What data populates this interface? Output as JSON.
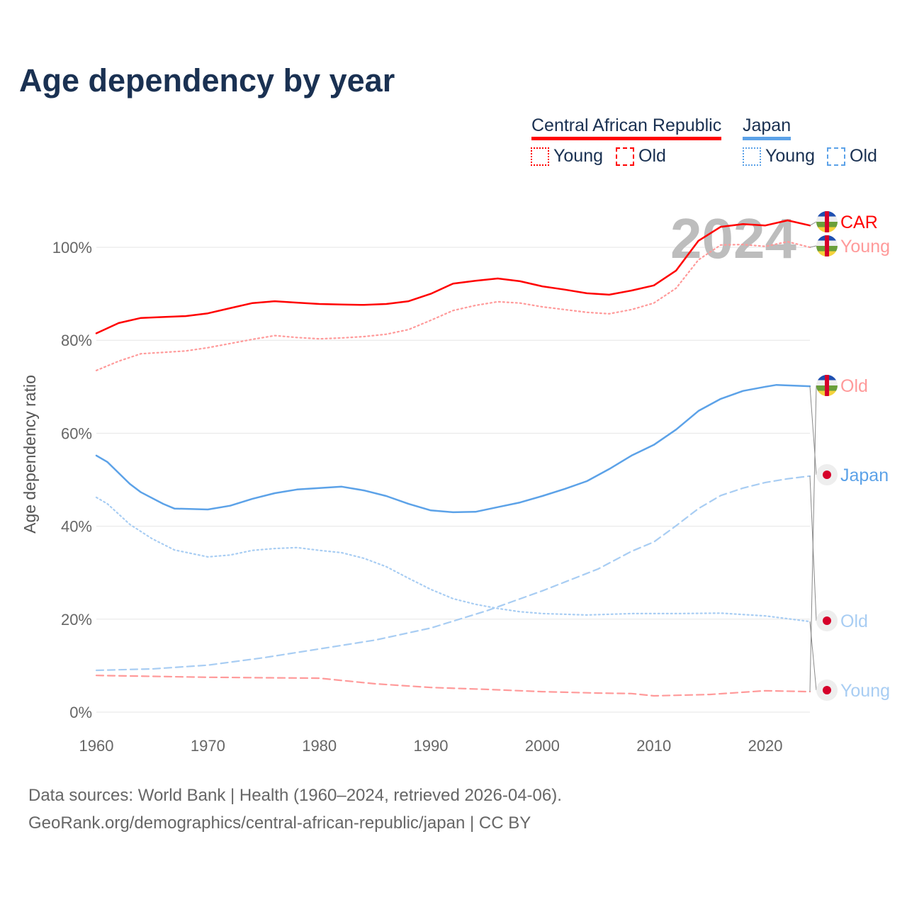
{
  "chart_data": {
    "type": "line",
    "title": "Age dependency by year",
    "ylabel": "Age dependency ratio",
    "xlabel": "",
    "xlim": [
      1960,
      2024
    ],
    "ylim": [
      0,
      110
    ],
    "x_ticks": [
      "1960",
      "1970",
      "1980",
      "1990",
      "2000",
      "2010",
      "2020"
    ],
    "y_ticks": [
      "0%",
      "20%",
      "40%",
      "60%",
      "80%",
      "100%"
    ],
    "grid": true,
    "watermark": "2024",
    "legend": {
      "groups": [
        {
          "name": "Central African Republic",
          "color": "#ff0000",
          "young": "Young",
          "old": "Old"
        },
        {
          "name": "Japan",
          "color": "#5ca2e8",
          "young": "Young",
          "old": "Old"
        }
      ]
    },
    "series": [
      {
        "name": "Central African Republic",
        "end_label": "CAR",
        "color": "#ff0000",
        "style": "solid",
        "flag": "car",
        "x": [
          1960,
          1962,
          1964,
          1966,
          1968,
          1970,
          1972,
          1974,
          1976,
          1978,
          1980,
          1982,
          1984,
          1986,
          1988,
          1990,
          1992,
          1994,
          1996,
          1998,
          2000,
          2002,
          2004,
          2006,
          2008,
          2010,
          2012,
          2014,
          2016,
          2018,
          2020,
          2022,
          2024
        ],
        "y": [
          81.5,
          83.7,
          84.8,
          85,
          85.2,
          85.8,
          86.9,
          88,
          88.4,
          88.1,
          87.8,
          87.7,
          87.6,
          87.8,
          88.4,
          90,
          92.2,
          92.8,
          93.3,
          92.7,
          91.6,
          90.9,
          90.1,
          89.8,
          90.7,
          91.8,
          95,
          101.4,
          104.4,
          105,
          104.7,
          105.8,
          104.7
        ]
      },
      {
        "name": "Central African Republic Young",
        "end_label": "Young",
        "color": "#ff9a9a",
        "style": "dotted",
        "flag": "car",
        "x": [
          1960,
          1962,
          1964,
          1966,
          1968,
          1970,
          1972,
          1974,
          1976,
          1978,
          1980,
          1982,
          1984,
          1986,
          1988,
          1990,
          1992,
          1994,
          1996,
          1998,
          2000,
          2002,
          2004,
          2006,
          2008,
          2010,
          2012,
          2014,
          2016,
          2018,
          2020,
          2022,
          2024
        ],
        "y": [
          73.5,
          75.5,
          77.1,
          77.4,
          77.7,
          78.4,
          79.3,
          80.2,
          81,
          80.6,
          80.3,
          80.5,
          80.8,
          81.3,
          82.3,
          84.3,
          86.4,
          87.5,
          88.3,
          88,
          87.2,
          86.6,
          86,
          85.7,
          86.6,
          88,
          91.2,
          97.3,
          100.5,
          100.6,
          100.2,
          101.2,
          100
        ]
      },
      {
        "name": "Central African Republic Old",
        "end_label": "Old",
        "color": "#ff9a9a",
        "style": "dashed",
        "flag": "car",
        "x": [
          1960,
          1970,
          1980,
          1985,
          1990,
          1995,
          2000,
          2005,
          2008,
          2010,
          2015,
          2020,
          2024
        ],
        "y": [
          7.9,
          7.5,
          7.3,
          6.1,
          5.3,
          4.9,
          4.4,
          4.1,
          4,
          3.5,
          3.8,
          4.6,
          4.4
        ]
      },
      {
        "name": "Japan",
        "end_label": "Japan",
        "color": "#5ca2e8",
        "style": "solid",
        "flag": "japan",
        "x": [
          1960,
          1961,
          1963,
          1964,
          1966,
          1967,
          1970,
          1972,
          1974,
          1976,
          1978,
          1980,
          1982,
          1984,
          1986,
          1988,
          1990,
          1992,
          1994,
          1996,
          1998,
          2000,
          2002,
          2004,
          2006,
          2008,
          2010,
          2012,
          2014,
          2016,
          2018,
          2020,
          2021,
          2024
        ],
        "y": [
          55.2,
          53.8,
          49.1,
          47.3,
          44.8,
          43.8,
          43.6,
          44.4,
          45.9,
          47.1,
          47.9,
          48.2,
          48.5,
          47.7,
          46.5,
          44.8,
          43.4,
          43,
          43.1,
          44.1,
          45.1,
          46.5,
          48,
          49.7,
          52.3,
          55.2,
          57.5,
          60.8,
          64.8,
          67.4,
          69.1,
          70,
          70.4,
          70.1
        ]
      },
      {
        "name": "Japan Old",
        "end_label": "Old",
        "color": "#a8cdf3",
        "style": "dashed",
        "flag": "japan",
        "x": [
          1960,
          1965,
          1970,
          1975,
          1980,
          1985,
          1990,
          1995,
          2000,
          2005,
          2008,
          2010,
          2012,
          2014,
          2016,
          2018,
          2020,
          2022,
          2024
        ],
        "y": [
          9,
          9.3,
          10.1,
          11.7,
          13.6,
          15.5,
          18.1,
          21.8,
          26.1,
          30.8,
          34.6,
          36.6,
          40.1,
          43.8,
          46.6,
          48.2,
          49.4,
          50.2,
          50.8
        ]
      },
      {
        "name": "Japan Young",
        "end_label": "Young",
        "color": "#a8cdf3",
        "style": "dotted",
        "flag": "japan",
        "x": [
          1960,
          1961,
          1963,
          1965,
          1967,
          1970,
          1972,
          1974,
          1976,
          1978,
          1980,
          1982,
          1984,
          1986,
          1988,
          1990,
          1992,
          1994,
          1996,
          1998,
          2000,
          2004,
          2008,
          2012,
          2016,
          2020,
          2024
        ],
        "y": [
          46.2,
          44.8,
          40.4,
          37.3,
          34.9,
          33.4,
          33.8,
          34.8,
          35.2,
          35.4,
          34.8,
          34.3,
          33.1,
          31.3,
          28.8,
          26.4,
          24.4,
          23.2,
          22.3,
          21.6,
          21.2,
          20.9,
          21.2,
          21.2,
          21.3,
          20.7,
          19.5
        ]
      }
    ]
  },
  "footer": {
    "line1": "Data sources: World Bank | Health (1960–2024, retrieved 2026-04-06).",
    "line2": "GeoRank.org/demographics/central-african-republic/japan | CC BY"
  }
}
